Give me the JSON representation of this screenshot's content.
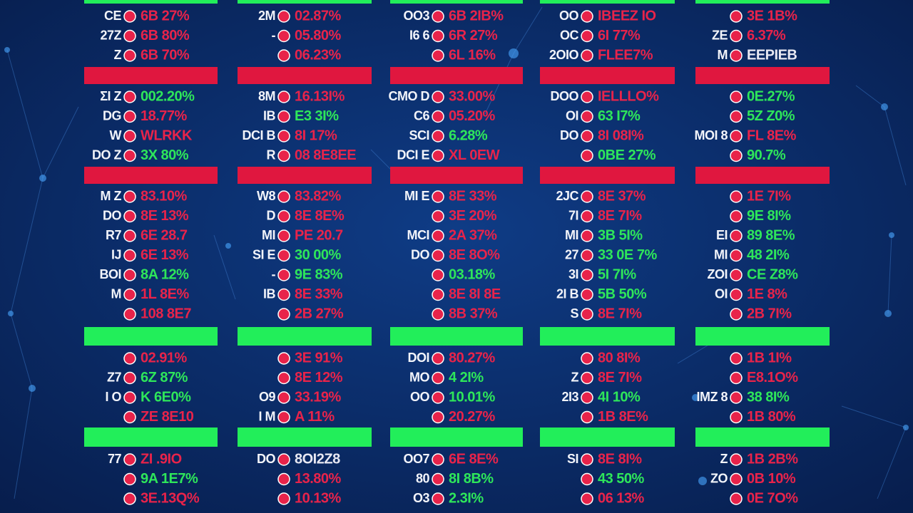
{
  "bars": [
    "#22ee5a",
    "#e0173f",
    "#e0173f",
    "#22ee5a",
    "#22ee5a"
  ],
  "columns": [
    {
      "groups": [
        [
          {
            "label": "CE",
            "value": "6B 27%",
            "color": "#e8234a"
          },
          {
            "label": "27Z",
            "value": "6B 80%",
            "color": "#e8234a"
          },
          {
            "label": "Z",
            "value": "6B 70%",
            "color": "#e8234a"
          }
        ],
        [
          {
            "label": "ΣI Z",
            "value": "002.20%",
            "color": "#2ee65a"
          },
          {
            "label": "DG",
            "value": "18.77%",
            "color": "#e8234a"
          },
          {
            "label": "W",
            "value": "WLRKK",
            "color": "#e8234a"
          },
          {
            "label": "DO Z",
            "value": "3X 80%",
            "color": "#2ee65a"
          }
        ],
        [
          {
            "label": "M Z",
            "value": "83.10%",
            "color": "#e8234a"
          },
          {
            "label": "DO",
            "value": "8E 13%",
            "color": "#e8234a"
          },
          {
            "label": "R7",
            "value": "6E 28.7",
            "color": "#e8234a"
          },
          {
            "label": "IJ",
            "value": "6E 13%",
            "color": "#e8234a"
          },
          {
            "label": "BOI",
            "value": "8A 12%",
            "color": "#2ee65a"
          },
          {
            "label": "M",
            "value": "1L 8E%",
            "color": "#e8234a"
          },
          {
            "value": "108 8E7",
            "color": "#e8234a"
          }
        ],
        [
          {
            "value": "02.91%",
            "color": "#e8234a"
          },
          {
            "label": "Z7",
            "value": "6Z 87%",
            "color": "#2ee65a"
          },
          {
            "label": "I O",
            "value": "K 6E0%",
            "color": "#2ee65a"
          },
          {
            "value": "ZE 8E10",
            "color": "#e8234a"
          }
        ],
        [
          {
            "label": "77",
            "value": "ZI .9IO",
            "color": "#e8234a"
          },
          {
            "value": "9A 1E7%",
            "color": "#2ee65a"
          },
          {
            "value": "3E.13Q%",
            "color": "#e8234a"
          }
        ]
      ]
    },
    {
      "groups": [
        [
          {
            "label": "2M",
            "value": "02.87%",
            "color": "#e8234a"
          },
          {
            "label": "-",
            "value": "05.80%",
            "color": "#e8234a"
          },
          {
            "value": "06.23%",
            "color": "#e8234a"
          }
        ],
        [
          {
            "label": "8M",
            "value": "16.13I%",
            "color": "#e8234a"
          },
          {
            "label": "IB",
            "value": "E3 3I%",
            "color": "#2ee65a"
          },
          {
            "label": "DCI B",
            "value": "8I 17%",
            "color": "#e8234a"
          },
          {
            "label": "R",
            "value": "08 8E8EE",
            "color": "#e8234a"
          }
        ],
        [
          {
            "label": "W8",
            "value": "83.82%",
            "color": "#e8234a"
          },
          {
            "label": "D",
            "value": "8E 8E%",
            "color": "#e8234a"
          },
          {
            "label": "MI",
            "value": "PE 20.7",
            "color": "#e8234a"
          },
          {
            "label": "SI E",
            "value": "30 00%",
            "color": "#2ee65a"
          },
          {
            "label": "-",
            "value": "9E 83%",
            "color": "#2ee65a"
          },
          {
            "label": "IB",
            "value": "8E 33%",
            "color": "#e8234a"
          },
          {
            "value": "2B 27%",
            "color": "#e8234a"
          }
        ],
        [
          {
            "value": "3E 91%",
            "color": "#e8234a"
          },
          {
            "value": "8E 12%",
            "color": "#e8234a"
          },
          {
            "label": "O9",
            "value": "33.19%",
            "color": "#e8234a"
          },
          {
            "label": "I M",
            "value": "A 11%",
            "color": "#e8234a"
          }
        ],
        [
          {
            "label": "DO",
            "value": "8OI2Z8",
            "color": "#e8e8f2"
          },
          {
            "value": "13.80%",
            "color": "#e8234a"
          },
          {
            "value": "10.13%",
            "color": "#e8234a"
          }
        ]
      ]
    },
    {
      "groups": [
        [
          {
            "label": "OO3",
            "value": "6B 2IB%",
            "color": "#e8234a"
          },
          {
            "label": "I6 6",
            "value": "6R 27%",
            "color": "#e8234a"
          },
          {
            "value": "6L 16%",
            "color": "#e8234a"
          }
        ],
        [
          {
            "label": "CMO D",
            "value": "33.00%",
            "color": "#e8234a"
          },
          {
            "label": "C6",
            "value": "05.20%",
            "color": "#e8234a"
          },
          {
            "label": "SCI",
            "value": "6.28%",
            "color": "#2ee65a"
          },
          {
            "label": "DCI E",
            "value": "XL 0EW",
            "color": "#e8234a"
          }
        ],
        [
          {
            "label": "MI E",
            "value": "8E 33%",
            "color": "#e8234a"
          },
          {
            "value": "3E 20%",
            "color": "#e8234a"
          },
          {
            "label": "MCI",
            "value": "2A 37%",
            "color": "#e8234a"
          },
          {
            "label": "DO",
            "value": "8E 8O%",
            "color": "#e8234a"
          },
          {
            "value": "03.18%",
            "color": "#2ee65a"
          },
          {
            "value": "8E 8I 8E",
            "color": "#e8234a"
          },
          {
            "value": "8B 37%",
            "color": "#e8234a"
          }
        ],
        [
          {
            "label": "DOI",
            "value": "80.27%",
            "color": "#e8234a"
          },
          {
            "label": "MO",
            "value": "4 2I%",
            "color": "#2ee65a"
          },
          {
            "label": "OO",
            "value": "10.01%",
            "color": "#2ee65a"
          },
          {
            "value": "20.27%",
            "color": "#e8234a"
          }
        ],
        [
          {
            "label": "OO7",
            "value": "6E 8E%",
            "color": "#e8234a"
          },
          {
            "label": "80",
            "value": "8I 8B%",
            "color": "#2ee65a"
          },
          {
            "label": "O3",
            "value": "2.3I%",
            "color": "#2ee65a"
          }
        ]
      ]
    },
    {
      "groups": [
        [
          {
            "label": "OO",
            "value": "IBEEZ IO",
            "color": "#e8234a"
          },
          {
            "label": "OC",
            "value": "6I 77%",
            "color": "#e8234a"
          },
          {
            "label": "2OIO",
            "value": "FLEE7%",
            "color": "#e8234a"
          }
        ],
        [
          {
            "label": "DOO",
            "value": "IELLLO%",
            "color": "#e8234a"
          },
          {
            "label": "OI",
            "value": "63 I7%",
            "color": "#2ee65a"
          },
          {
            "label": "DO",
            "value": "8I 08I%",
            "color": "#e8234a"
          },
          {
            "value": "0BE 27%",
            "color": "#2ee65a"
          }
        ],
        [
          {
            "label": "2JC",
            "value": "8E 37%",
            "color": "#e8234a"
          },
          {
            "label": "7I",
            "value": "8E 7I%",
            "color": "#e8234a"
          },
          {
            "label": "MI",
            "value": "3B 5I%",
            "color": "#2ee65a"
          },
          {
            "label": "27",
            "value": "33 0E 7%",
            "color": "#2ee65a"
          },
          {
            "label": "3I",
            "value": "5I 7I%",
            "color": "#2ee65a"
          },
          {
            "label": "2I B",
            "value": "5B 50%",
            "color": "#2ee65a"
          },
          {
            "label": "S",
            "value": "8E 7I%",
            "color": "#e8234a"
          }
        ],
        [
          {
            "value": "80 8I%",
            "color": "#e8234a"
          },
          {
            "label": "Z",
            "value": "8E 7I%",
            "color": "#e8234a"
          },
          {
            "label": "2I3",
            "value": "4I 10%",
            "color": "#2ee65a"
          },
          {
            "value": "1B 8E%",
            "color": "#e8234a"
          }
        ],
        [
          {
            "label": "SI",
            "value": "8E 8I%",
            "color": "#e8234a"
          },
          {
            "value": "43 50%",
            "color": "#2ee65a"
          },
          {
            "value": "06 13%",
            "color": "#e8234a"
          }
        ]
      ]
    },
    {
      "groups": [
        [
          {
            "value": "3E 1B%",
            "color": "#e8234a"
          },
          {
            "label": "ZE",
            "value": "6.37%",
            "color": "#e8234a"
          },
          {
            "label": "M",
            "value": "EEPIEB",
            "color": "#e8e8f2"
          }
        ],
        [
          {
            "value": "0E.27%",
            "color": "#2ee65a"
          },
          {
            "value": "5Z Z0%",
            "color": "#2ee65a"
          },
          {
            "label": "MOI 8",
            "value": "FL 8E%",
            "color": "#e8234a"
          },
          {
            "value": "90.7%",
            "color": "#2ee65a"
          }
        ],
        [
          {
            "value": "1E 7I%",
            "color": "#e8234a"
          },
          {
            "value": "9E 8I%",
            "color": "#2ee65a"
          },
          {
            "label": "EI",
            "value": "89 8E%",
            "color": "#2ee65a"
          },
          {
            "label": "MI",
            "value": "48 2I%",
            "color": "#2ee65a"
          },
          {
            "label": "ZOI",
            "value": "CE Z8%",
            "color": "#2ee65a"
          },
          {
            "label": "OI",
            "value": "1E 8%",
            "color": "#e8234a"
          },
          {
            "value": "2B 7I%",
            "color": "#e8234a"
          }
        ],
        [
          {
            "value": "1B 1I%",
            "color": "#e8234a"
          },
          {
            "value": "E8.1O%",
            "color": "#e8234a"
          },
          {
            "label": "IMZ 8",
            "value": "38 8I%",
            "color": "#2ee65a"
          },
          {
            "value": "1B 80%",
            "color": "#e8234a"
          }
        ],
        [
          {
            "label": "Z",
            "value": "1B 2B%",
            "color": "#e8234a"
          },
          {
            "label": "ZO",
            "value": "0B 10%",
            "color": "#e8234a"
          },
          {
            "value": "0E 7O%",
            "color": "#e8234a"
          }
        ]
      ]
    }
  ]
}
